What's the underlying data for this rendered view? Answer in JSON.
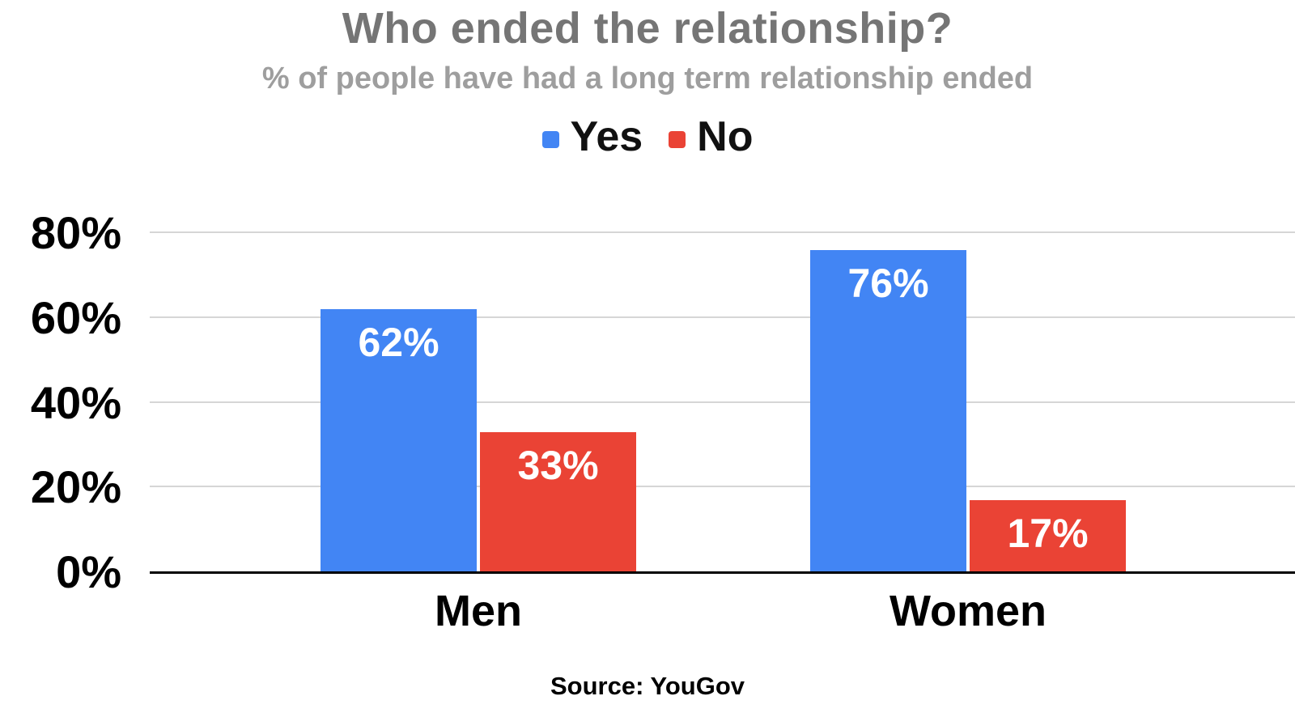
{
  "title": "Who ended the relationship?",
  "subtitle": "% of people have had a long term relationship ended",
  "source": "Source: YouGov",
  "colors": {
    "yes": "#4285F4",
    "no": "#EA4335",
    "title_text": "#757575",
    "subtitle_text": "#9E9E9E",
    "legend_text": "#111111",
    "axis_text": "#000000",
    "bar_label_text": "#FFFFFF",
    "gridline": "#D6D6D6",
    "axis_line": "#000000",
    "background": "#FFFFFF"
  },
  "legend": {
    "items": [
      {
        "label": "Yes",
        "color": "#4285F4"
      },
      {
        "label": "No",
        "color": "#EA4335"
      }
    ]
  },
  "chart_data": {
    "type": "bar",
    "title": "Who ended the relationship?",
    "subtitle": "% of people have had a long term relationship ended",
    "source": "Source: YouGov",
    "categories": [
      "Men",
      "Women"
    ],
    "series": [
      {
        "name": "Yes",
        "color": "#4285F4",
        "values": [
          62,
          76
        ],
        "labels": [
          "62%",
          "76%"
        ]
      },
      {
        "name": "No",
        "color": "#EA4335",
        "values": [
          33,
          17
        ],
        "labels": [
          "33%",
          "17%"
        ]
      }
    ],
    "xlabel": "",
    "ylabel": "",
    "ylim": [
      0,
      80
    ],
    "ytick_values": [
      0,
      20,
      40,
      60,
      80
    ],
    "ytick_labels": [
      "0%",
      "20%",
      "40%",
      "60%",
      "80%"
    ],
    "grid": true,
    "legend_position": "top"
  }
}
